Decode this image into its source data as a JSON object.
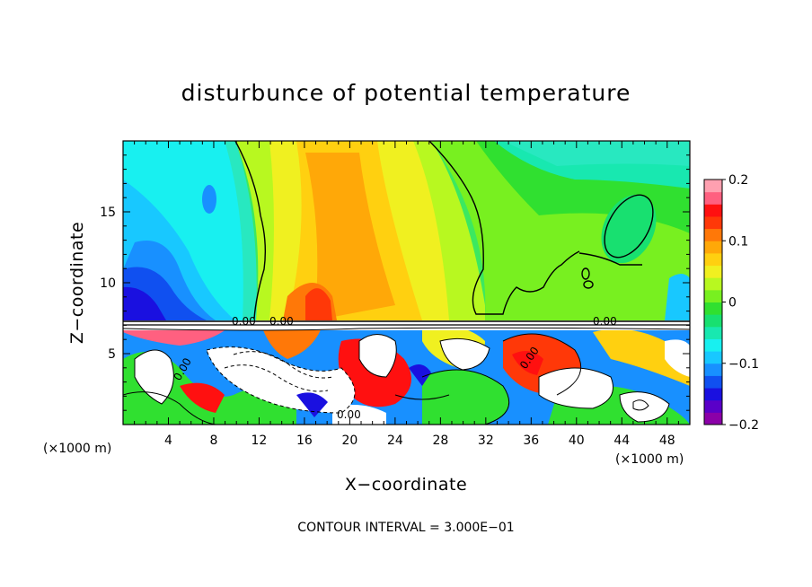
{
  "chart_data": {
    "type": "heatmap",
    "title": "disturbunce of potential temperature",
    "xlabel": "X−coordinate",
    "ylabel": "Z−coordinate",
    "x_unit": "(×1000 m)",
    "y_unit": "(×1000 m)",
    "x_ticks": [
      "4",
      "8",
      "12",
      "16",
      "20",
      "24",
      "28",
      "32",
      "36",
      "40",
      "44",
      "48"
    ],
    "x_tick_values": [
      4,
      8,
      12,
      16,
      20,
      24,
      28,
      32,
      36,
      40,
      44,
      48
    ],
    "y_ticks": [
      "5",
      "10",
      "15"
    ],
    "y_tick_values": [
      5,
      10,
      15
    ],
    "xlim": [
      0,
      50
    ],
    "ylim": [
      0,
      20
    ],
    "colorbar": {
      "ticks": [
        "0.2",
        "0.1",
        "0",
        "−0.1",
        "−0.2"
      ],
      "tick_values": [
        0.2,
        0.1,
        0,
        -0.1,
        -0.2
      ],
      "range": [
        -0.2,
        0.2
      ],
      "colors": [
        "#8b00a8",
        "#5a00c8",
        "#1a10e0",
        "#1050f0",
        "#1890ff",
        "#18c8ff",
        "#18f0f0",
        "#18e8b0",
        "#18e070",
        "#30e030",
        "#78f020",
        "#b8f820",
        "#f0f020",
        "#ffd010",
        "#ffa808",
        "#ff7808",
        "#ff3808",
        "#ff1010",
        "#ff6080",
        "#ffa0b0"
      ]
    },
    "contour_labels": [
      "0.00",
      "0.00",
      "0.00",
      "0.00",
      "0.00",
      "0.00"
    ],
    "footnote": "CONTOUR INTERVAL = 3.000E−01"
  }
}
